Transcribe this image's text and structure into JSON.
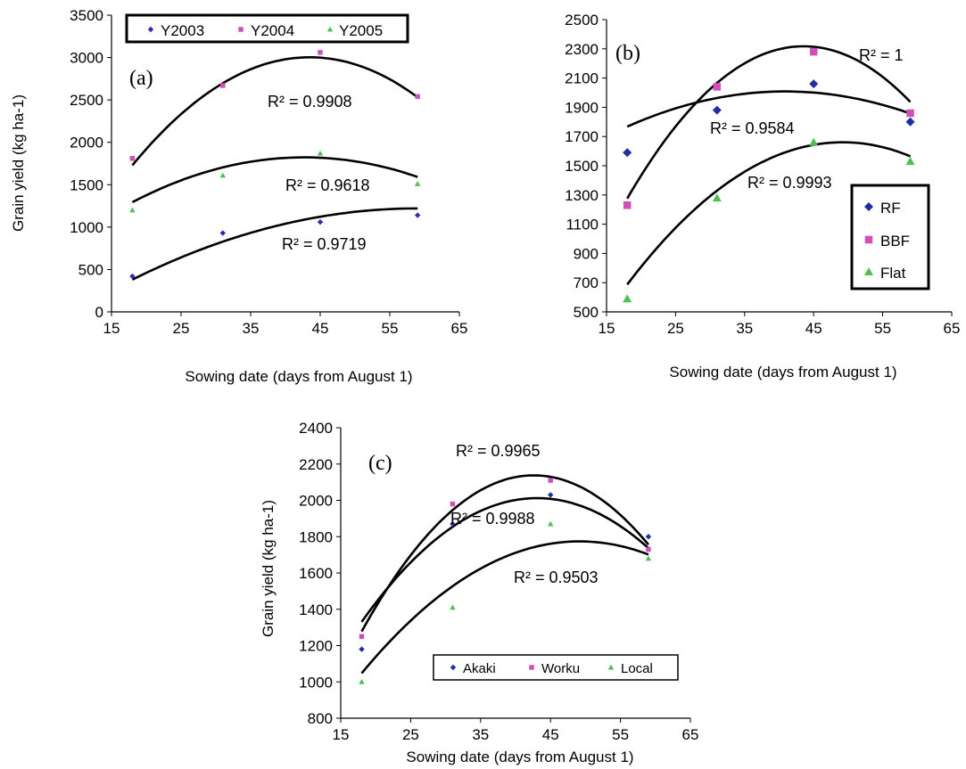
{
  "chart_data": [
    {
      "panel": "(a)",
      "type": "scatter",
      "xlabel": "Sowing date (days from August 1)",
      "ylabel": "Grain yield (kg ha-1)",
      "xlim": [
        15,
        65
      ],
      "ylim": [
        0,
        3500
      ],
      "xticks": [
        "15",
        "25",
        "35",
        "45",
        "55",
        "65"
      ],
      "yticks": [
        "0",
        "500",
        "1000",
        "1500",
        "2000",
        "2500",
        "3000",
        "3500"
      ],
      "legend_placement": "top",
      "series": [
        {
          "name": "Y2003",
          "color": "#2b2bbf",
          "marker": "diamond-small",
          "x": [
            18,
            31,
            45,
            59
          ],
          "y": [
            420,
            930,
            1060,
            1140
          ],
          "trend": [
            -0.5,
            59.0,
            -520
          ],
          "r2": "R² = 0.9719"
        },
        {
          "name": "Y2004",
          "color": "#d14fb8",
          "marker": "square-small",
          "x": [
            18,
            31,
            45,
            59
          ],
          "y": [
            1810,
            2670,
            3060,
            2540
          ],
          "trend": [
            -1.96,
            170.5,
            -705
          ],
          "r2": "R² = 0.9908"
        },
        {
          "name": "Y2005",
          "color": "#4fc04f",
          "marker": "triangle-small",
          "x": [
            18,
            31,
            45,
            59
          ],
          "y": [
            1200,
            1610,
            1870,
            1510
          ],
          "trend": [
            -0.868,
            74.1,
            241
          ],
          "r2": "R² = 0.9618"
        }
      ]
    },
    {
      "panel": "(b)",
      "type": "scatter",
      "xlabel": "Sowing date (days from August 1)",
      "ylabel": "",
      "xlim": [
        15,
        65
      ],
      "ylim": [
        500,
        2500
      ],
      "xticks": [
        "15",
        "25",
        "35",
        "45",
        "55",
        "65"
      ],
      "yticks": [
        "500",
        "700",
        "900",
        "1100",
        "1300",
        "1500",
        "1700",
        "1900",
        "2100",
        "2300",
        "2500"
      ],
      "legend_placement": "bottom-right",
      "series": [
        {
          "name": "RF",
          "color": "#1f2fa0",
          "marker": "diamond",
          "x": [
            18,
            31,
            45,
            59
          ],
          "y": [
            1590,
            1880,
            2060,
            1800
          ],
          "trend": [
            -0.46,
            37.6,
            1240
          ],
          "r2": "R² = 0.9584"
        },
        {
          "name": "BBF",
          "color": "#d14fb8",
          "marker": "square",
          "x": [
            18,
            31,
            45,
            59
          ],
          "y": [
            1230,
            2040,
            2280,
            1860
          ],
          "trend": [
            -1.596,
            139.0,
            -709
          ],
          "r2": "R² = 1"
        },
        {
          "name": "Flat",
          "color": "#4fc04f",
          "marker": "triangle",
          "x": [
            18,
            31,
            45,
            59
          ],
          "y": [
            590,
            1280,
            1660,
            1530
          ],
          "trend": [
            -1.0,
            98.4,
            -760
          ],
          "r2": "R² = 0.9993"
        }
      ]
    },
    {
      "panel": "(c)",
      "type": "scatter",
      "xlabel": "Sowing date (days from August 1)",
      "ylabel": "Grain yield (kg ha-1)",
      "xlim": [
        15,
        65
      ],
      "ylim": [
        800,
        2400
      ],
      "xticks": [
        "15",
        "25",
        "35",
        "45",
        "55",
        "65"
      ],
      "yticks": [
        "800",
        "1000",
        "1200",
        "1400",
        "1600",
        "1800",
        "2000",
        "2200",
        "2400"
      ],
      "legend_placement": "bottom",
      "series": [
        {
          "name": "Akaki",
          "color": "#1f2fa0",
          "marker": "diamond-small",
          "x": [
            18,
            31,
            45,
            59
          ],
          "y": [
            1180,
            1870,
            2030,
            1800
          ],
          "trend": [
            -1.085,
            93.45,
            0
          ],
          "r2": "R² = 0.9988"
        },
        {
          "name": "Worku",
          "color": "#d14fb8",
          "marker": "square-small",
          "x": [
            18,
            31,
            45,
            59
          ],
          "y": [
            1250,
            1980,
            2110,
            1730
          ],
          "trend": [
            -1.42,
            121.0,
            -440
          ],
          "r2": "R² = 0.9965"
        },
        {
          "name": "Local",
          "color": "#4fc04f",
          "marker": "triangle-small",
          "x": [
            18,
            31,
            45,
            59
          ],
          "y": [
            1000,
            1410,
            1870,
            1680
          ],
          "trend": [
            -0.748,
            73.55,
            -34
          ],
          "r2": "R² = 0.9503"
        }
      ]
    }
  ]
}
